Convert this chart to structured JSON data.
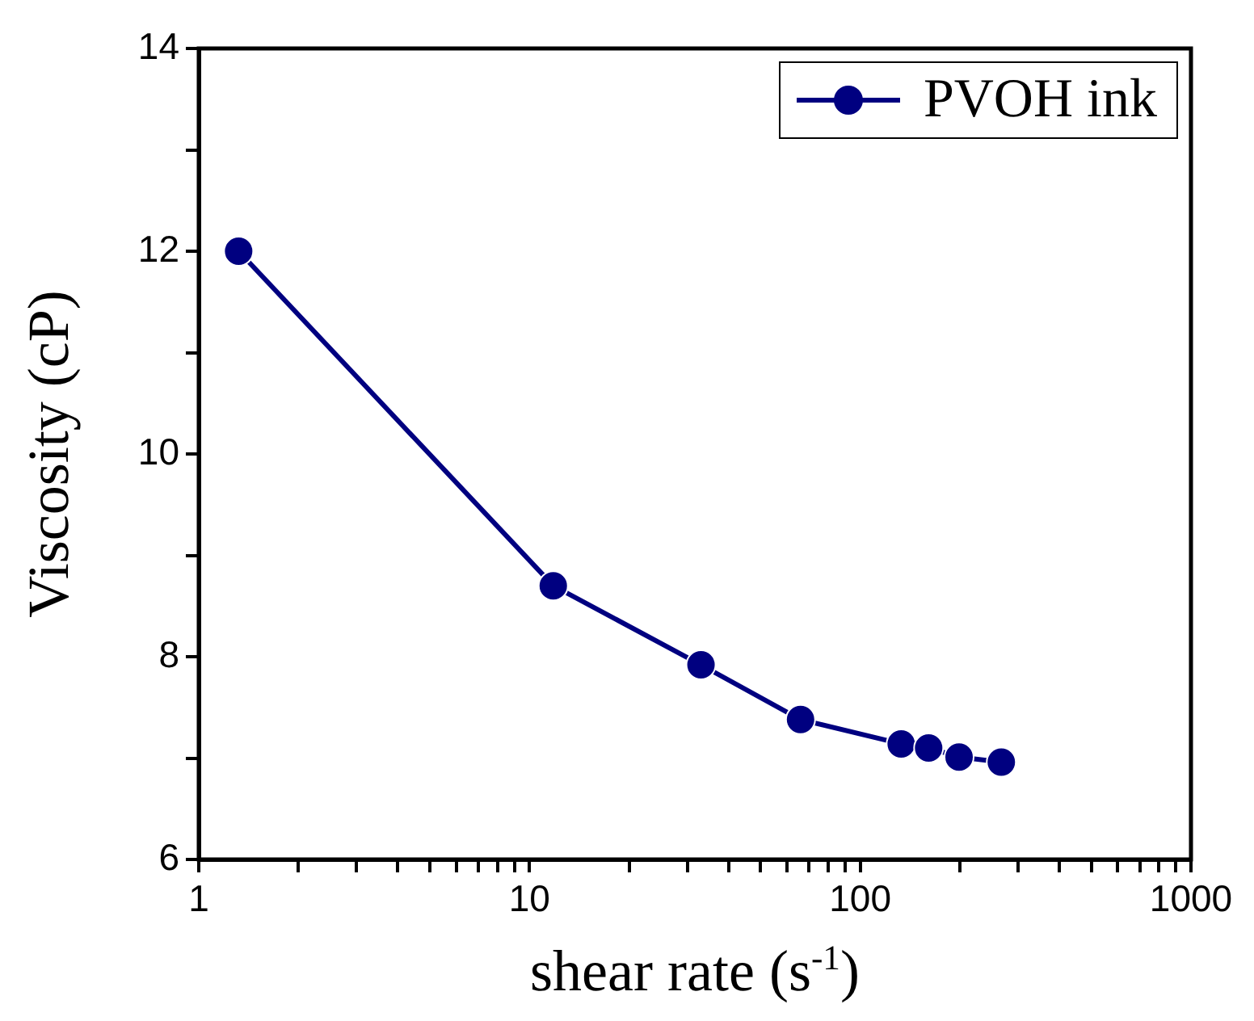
{
  "chart_data": {
    "type": "line",
    "xlabel": "shear rate (s$^{-1}$)",
    "ylabel": "Viscosity (cP)",
    "x": [
      1.32,
      11.8,
      33,
      66,
      133,
      161,
      199,
      267
    ],
    "series": [
      {
        "name": "PVOH ink",
        "color": "#000080",
        "values": [
          12.0,
          8.7,
          7.92,
          7.38,
          7.14,
          7.1,
          7.01,
          6.96
        ]
      }
    ],
    "log": "x",
    "xlim": [
      1,
      1000
    ],
    "xticks": [
      1,
      {
        "value": 2,
        "label": null
      },
      {
        "value": 3,
        "label": null
      },
      {
        "value": 4,
        "label": null
      },
      {
        "value": 5,
        "label": null
      },
      {
        "value": 6,
        "label": null
      },
      {
        "value": 7,
        "label": null
      },
      {
        "value": 8,
        "label": null
      },
      {
        "value": 9,
        "label": null
      },
      10,
      {
        "value": 20,
        "label": null
      },
      {
        "value": 30,
        "label": null
      },
      {
        "value": 40,
        "label": null
      },
      {
        "value": 50,
        "label": null
      },
      {
        "value": 60,
        "label": null
      },
      {
        "value": 70,
        "label": null
      },
      {
        "value": 80,
        "label": null
      },
      {
        "value": 90,
        "label": null
      },
      100,
      {
        "value": 200,
        "label": null
      },
      {
        "value": 300,
        "label": null
      },
      {
        "value": 400,
        "label": null
      },
      {
        "value": 500,
        "label": null
      },
      {
        "value": 600,
        "label": null
      },
      {
        "value": 700,
        "label": null
      },
      {
        "value": 800,
        "label": null
      },
      {
        "value": 900,
        "label": null
      },
      1000
    ],
    "ylim": [
      6,
      14
    ],
    "yticks": [
      6,
      {
        "value": 7,
        "label": null
      },
      8,
      {
        "value": 9,
        "label": null
      },
      10,
      {
        "value": 11,
        "label": null
      },
      12,
      {
        "value": 13,
        "label": null
      },
      14
    ],
    "grid": false,
    "legend": "top right",
    "marker": "circle",
    "line_style": "solid"
  }
}
